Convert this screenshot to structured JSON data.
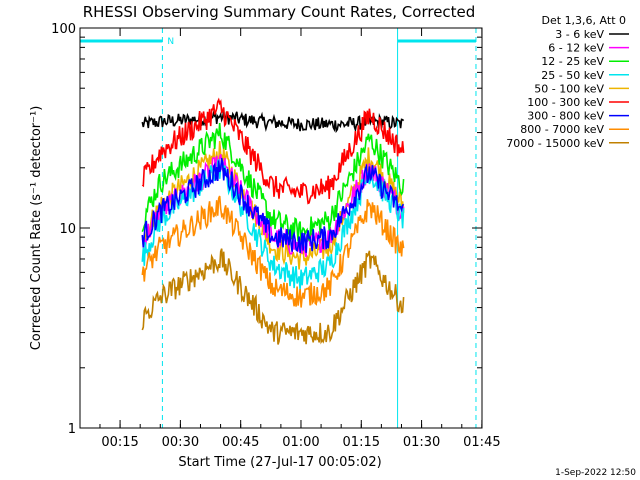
{
  "chart_data": {
    "type": "line",
    "title": "RHESSI Observing Summary Count Rates, Corrected",
    "xlabel": "Start Time (27-Jul-17 00:05:02)",
    "ylabel": "Corrected Count Rate (s⁻¹ detector⁻¹)",
    "xlim_minutes_after_start": [
      0,
      100
    ],
    "ylim": [
      1,
      100
    ],
    "yscale": "log",
    "x_tick_labels": [
      "00:15",
      "00:30",
      "00:45",
      "01:00",
      "01:15",
      "01:30",
      "01:45"
    ],
    "x_tick_minutes": [
      9.97,
      24.97,
      39.97,
      54.97,
      69.97,
      84.97,
      99.97
    ],
    "y_tick_labels": [
      "1",
      "10",
      "100"
    ],
    "y_tick_values": [
      1,
      10,
      100
    ],
    "legend": {
      "header": "Det 1,3,6, Att 0",
      "placement": "outside-right",
      "entries": [
        "3 - 6 keV",
        "6 - 12 keV",
        "12 - 25 keV",
        "25 - 50 keV",
        "50 - 100 keV",
        "100 - 300 keV",
        "300 - 800 keV",
        "800 - 7000 keV",
        "7000 - 15000 keV"
      ]
    },
    "annotations": [
      {
        "text": "N",
        "type": "night-interval",
        "x_start": 0,
        "x_end": 20.5,
        "color": "#00e5ee"
      },
      {
        "text": "",
        "type": "night-interval",
        "x_start": 79,
        "x_end": 98.5,
        "color": "#00e5ee"
      }
    ],
    "vertical_lines": [
      {
        "x": 0,
        "style": "solid",
        "color": "#00e5ee"
      },
      {
        "x": 20.5,
        "style": "dashed",
        "color": "#00e5ee"
      },
      {
        "x": 79,
        "style": "solid",
        "color": "#00e5ee"
      },
      {
        "x": 98.5,
        "style": "dashed",
        "color": "#00e5ee"
      }
    ],
    "data_x_range": [
      15,
      81
    ],
    "series": [
      {
        "name": "3 - 6 keV",
        "color": "#000000",
        "x": [
          15.5,
          20,
          30,
          35,
          45,
          55,
          65,
          75,
          80.5
        ],
        "y": [
          33,
          34,
          35,
          36,
          34,
          33,
          33,
          34,
          33
        ]
      },
      {
        "name": "6 - 12 keV",
        "color": "#ff00ff",
        "x": [
          15.5,
          20,
          35,
          48,
          55,
          62,
          72,
          80.5
        ],
        "y": [
          8.5,
          12,
          21,
          9,
          8,
          9,
          20,
          12
        ]
      },
      {
        "name": "12 - 25 keV",
        "color": "#00ee00",
        "x": [
          15.5,
          20,
          35,
          48,
          55,
          62,
          72,
          80.5
        ],
        "y": [
          11,
          17,
          30,
          11,
          9.5,
          11,
          28,
          16
        ]
      },
      {
        "name": "25 - 50 keV",
        "color": "#00e5ee",
        "x": [
          15.5,
          20,
          35,
          48,
          55,
          62,
          72,
          80.5
        ],
        "y": [
          7,
          11,
          20,
          6.5,
          5.5,
          6.5,
          19,
          11
        ]
      },
      {
        "name": "50 - 100 keV",
        "color": "#eeb400",
        "x": [
          15.5,
          20,
          35,
          48,
          55,
          62,
          72,
          80.5
        ],
        "y": [
          9,
          13,
          24,
          8,
          7,
          8,
          23,
          13
        ]
      },
      {
        "name": "100 - 300 keV",
        "color": "#ff0000",
        "x": [
          15.5,
          20,
          35,
          48,
          55,
          62,
          72,
          80.5
        ],
        "y": [
          17,
          24,
          40,
          16,
          15,
          16,
          37,
          24
        ]
      },
      {
        "name": "300 - 800 keV",
        "color": "#0000ff",
        "x": [
          15.5,
          20,
          35,
          48,
          55,
          62,
          72,
          80.5
        ],
        "y": [
          9,
          12,
          20,
          9,
          8.5,
          9,
          19,
          12
        ]
      },
      {
        "name": "800 - 7000 keV",
        "color": "#ff8c00",
        "x": [
          15.5,
          20,
          35,
          48,
          55,
          62,
          72,
          80.5
        ],
        "y": [
          6,
          8,
          13,
          5,
          4.5,
          5,
          13,
          7.5
        ]
      },
      {
        "name": "7000 - 15000 keV",
        "color": "#c08000",
        "x": [
          15.5,
          20,
          35,
          48,
          55,
          62,
          72,
          80.5
        ],
        "y": [
          3.5,
          4.5,
          7,
          3,
          3,
          3,
          7,
          4
        ]
      }
    ]
  },
  "footer": {
    "date_stamp": "1-Sep-2022 12:50"
  },
  "colors": {
    "background": "#ffffff",
    "axes": "#000000",
    "night_marker": "#00e5ee"
  }
}
